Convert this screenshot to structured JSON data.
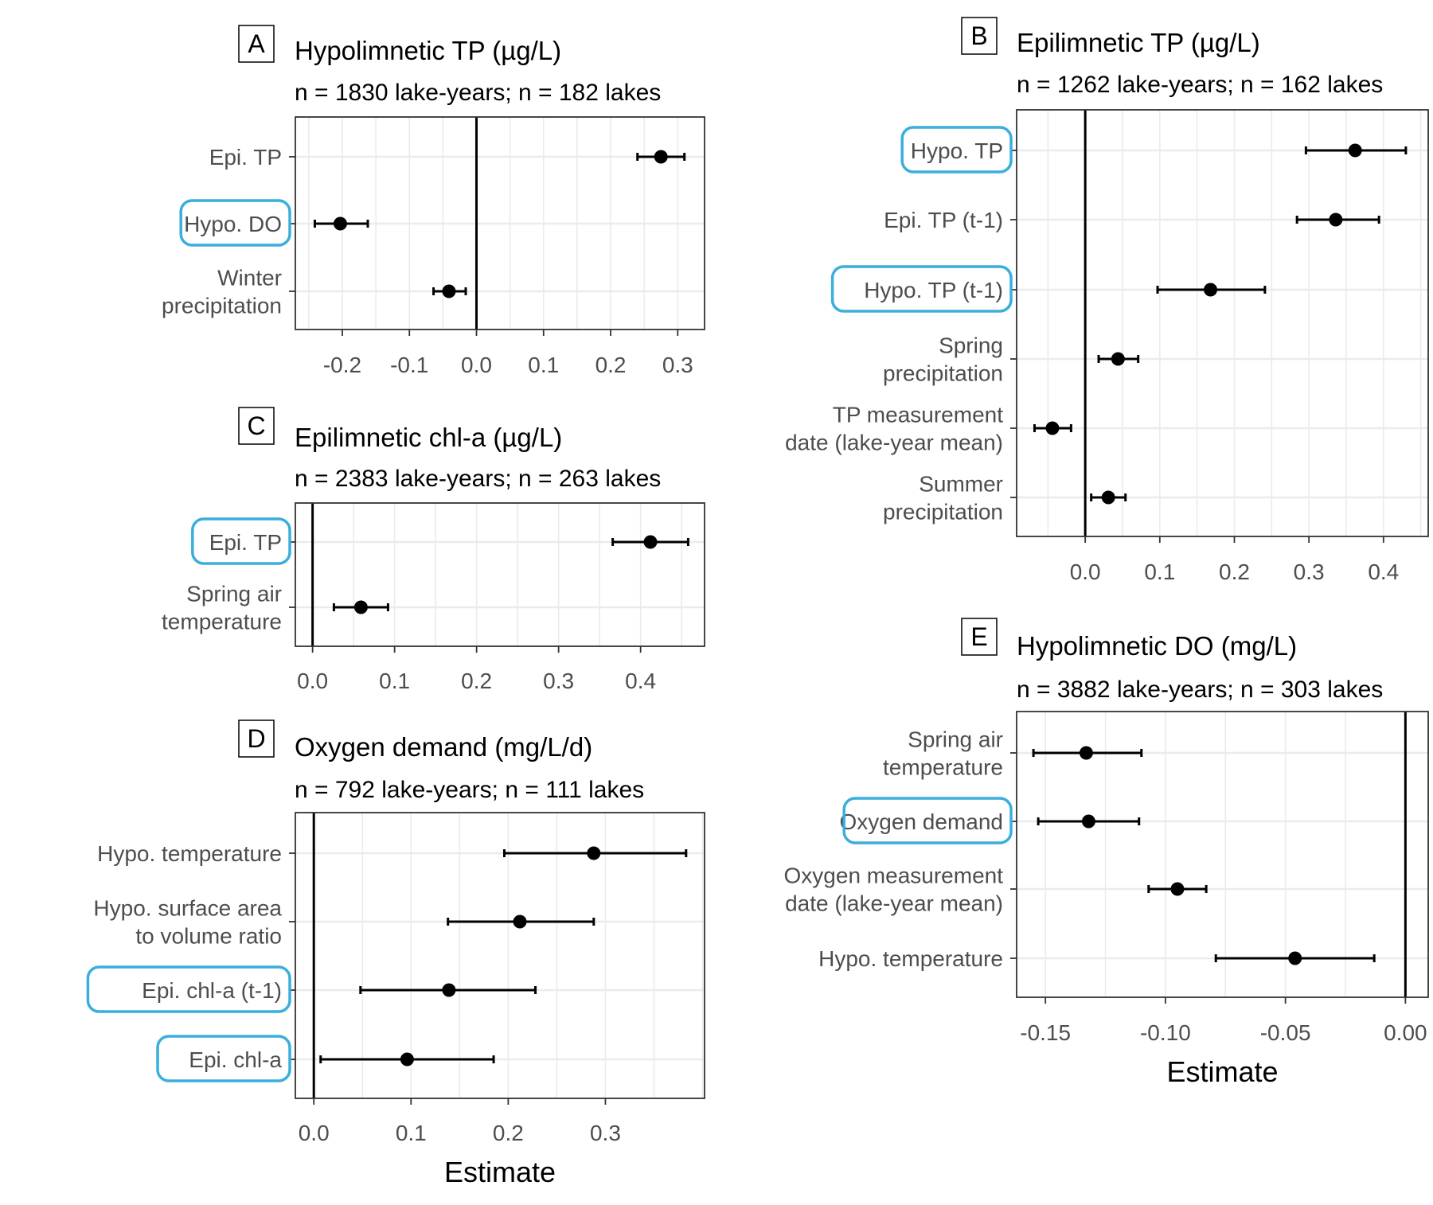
{
  "colors": {
    "highlight": "#3aaedc",
    "grid": "#ebebeb",
    "point": "#000000",
    "tick_text": "#4d4d4d",
    "panel_border": "#333333"
  },
  "chart_data": [
    {
      "id": "A",
      "type": "scatter",
      "letter": "A",
      "title": "Hypolimnetic TP (µg/L)",
      "subtitle": "n = 1830 lake-years; n = 182 lakes",
      "xlabel": "",
      "xlim": [
        -0.27,
        0.34
      ],
      "xticks": [
        -0.2,
        -0.1,
        0.0,
        0.1,
        0.2,
        0.3
      ],
      "xtick_labels": [
        "-0.2",
        "-0.1",
        "0.0",
        "0.1",
        "0.2",
        "0.3"
      ],
      "grid": true,
      "zero_line": true,
      "terms": [
        {
          "label": [
            "Epi. TP"
          ],
          "estimate": 0.275,
          "lower": 0.24,
          "upper": 0.31,
          "highlight": false
        },
        {
          "label": [
            "Hypo. DO"
          ],
          "estimate": -0.203,
          "lower": -0.241,
          "upper": -0.162,
          "highlight": true
        },
        {
          "label": [
            "Winter",
            "precipitation"
          ],
          "estimate": -0.041,
          "lower": -0.064,
          "upper": -0.016,
          "highlight": false
        }
      ]
    },
    {
      "id": "B",
      "type": "scatter",
      "letter": "B",
      "title": "Epilimnetic TP (µg/L)",
      "subtitle": "n = 1262 lake-years; n = 162 lakes",
      "xlabel": "",
      "xlim": [
        -0.092,
        0.46
      ],
      "xticks": [
        0.0,
        0.1,
        0.2,
        0.3,
        0.4
      ],
      "xtick_labels": [
        "0.0",
        "0.1",
        "0.2",
        "0.3",
        "0.4"
      ],
      "grid": true,
      "zero_line": true,
      "terms": [
        {
          "label": [
            "Hypo. TP"
          ],
          "estimate": 0.362,
          "lower": 0.296,
          "upper": 0.43,
          "highlight": true
        },
        {
          "label": [
            "Epi. TP (t-1)"
          ],
          "estimate": 0.336,
          "lower": 0.284,
          "upper": 0.394,
          "highlight": false
        },
        {
          "label": [
            "Hypo. TP (t-1)"
          ],
          "estimate": 0.168,
          "lower": 0.097,
          "upper": 0.241,
          "highlight": true
        },
        {
          "label": [
            "Spring",
            "precipitation"
          ],
          "estimate": 0.044,
          "lower": 0.018,
          "upper": 0.071,
          "highlight": false
        },
        {
          "label": [
            "TP measurement",
            "date (lake-year mean)"
          ],
          "estimate": -0.044,
          "lower": -0.068,
          "upper": -0.019,
          "highlight": false
        },
        {
          "label": [
            "Summer",
            "precipitation"
          ],
          "estimate": 0.031,
          "lower": 0.008,
          "upper": 0.054,
          "highlight": false
        }
      ]
    },
    {
      "id": "C",
      "type": "scatter",
      "letter": "C",
      "title": "Epilimnetic chl-a (µg/L)",
      "subtitle": "n = 2383 lake-years; n = 263 lakes",
      "xlabel": "",
      "xlim": [
        -0.021,
        0.478
      ],
      "xticks": [
        0.0,
        0.1,
        0.2,
        0.3,
        0.4
      ],
      "xtick_labels": [
        "0.0",
        "0.1",
        "0.2",
        "0.3",
        "0.4"
      ],
      "grid": true,
      "zero_line": true,
      "terms": [
        {
          "label": [
            "Epi. TP"
          ],
          "estimate": 0.412,
          "lower": 0.366,
          "upper": 0.458,
          "highlight": true
        },
        {
          "label": [
            "Spring air",
            "temperature"
          ],
          "estimate": 0.059,
          "lower": 0.026,
          "upper": 0.092,
          "highlight": false
        }
      ]
    },
    {
      "id": "D",
      "type": "scatter",
      "letter": "D",
      "title": "Oxygen demand (mg/L/d)",
      "subtitle": "n = 792 lake-years; n = 111 lakes",
      "xlabel": "Estimate",
      "xlim": [
        -0.019,
        0.402
      ],
      "xticks": [
        0.0,
        0.1,
        0.2,
        0.3
      ],
      "xtick_labels": [
        "0.0",
        "0.1",
        "0.2",
        "0.3"
      ],
      "grid": true,
      "zero_line": true,
      "terms": [
        {
          "label": [
            "Hypo. temperature"
          ],
          "estimate": 0.288,
          "lower": 0.196,
          "upper": 0.383,
          "highlight": false
        },
        {
          "label": [
            "Hypo. surface area",
            "to volume ratio"
          ],
          "estimate": 0.212,
          "lower": 0.138,
          "upper": 0.288,
          "highlight": false
        },
        {
          "label": [
            "Epi. chl-a (t-1)"
          ],
          "estimate": 0.139,
          "lower": 0.048,
          "upper": 0.228,
          "highlight": true
        },
        {
          "label": [
            "Epi. chl-a"
          ],
          "estimate": 0.096,
          "lower": 0.007,
          "upper": 0.185,
          "highlight": true
        }
      ]
    },
    {
      "id": "E",
      "type": "scatter",
      "letter": "E",
      "title": "Hypolimnetic DO (mg/L)",
      "subtitle": "n = 3882 lake-years; n = 303 lakes",
      "xlabel": "Estimate",
      "xlim": [
        -0.162,
        0.0095
      ],
      "xticks": [
        -0.15,
        -0.1,
        -0.05,
        0.0
      ],
      "xtick_labels": [
        "-0.15",
        "-0.10",
        "-0.05",
        "0.00"
      ],
      "grid": true,
      "zero_line": true,
      "terms": [
        {
          "label": [
            "Spring air",
            "temperature"
          ],
          "estimate": -0.133,
          "lower": -0.155,
          "upper": -0.11,
          "highlight": false
        },
        {
          "label": [
            "Oxygen demand"
          ],
          "estimate": -0.132,
          "lower": -0.153,
          "upper": -0.111,
          "highlight": true
        },
        {
          "label": [
            "Oxygen measurement",
            "date (lake-year mean)"
          ],
          "estimate": -0.095,
          "lower": -0.107,
          "upper": -0.083,
          "highlight": false
        },
        {
          "label": [
            "Hypo. temperature"
          ],
          "estimate": -0.046,
          "lower": -0.079,
          "upper": -0.013,
          "highlight": false
        }
      ]
    }
  ]
}
